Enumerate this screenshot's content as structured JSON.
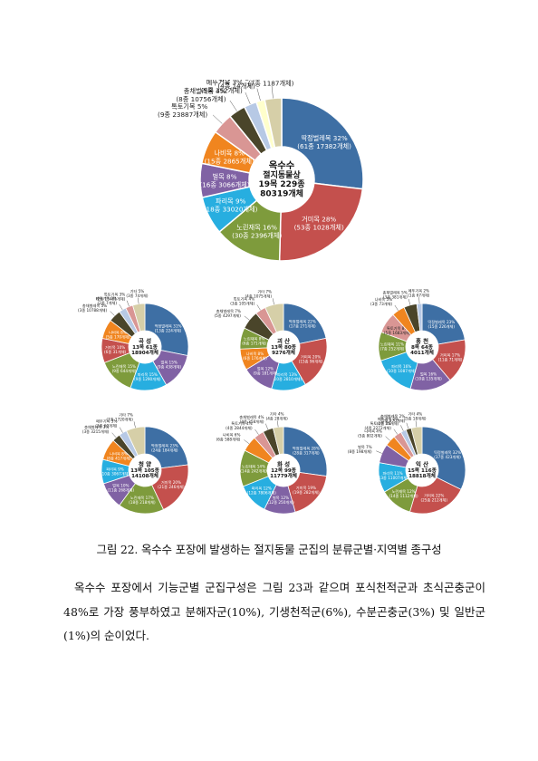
{
  "chart_data": [
    {
      "type": "pie",
      "center_label": [
        "옥수수",
        "절지동물상",
        "19목 229종",
        "80319개체"
      ],
      "slices": [
        {
          "name": "딱정벌레목 32%",
          "detail": "(61종 17382개체)",
          "value": 32,
          "color": "#3e6fa4"
        },
        {
          "name": "거미목 28%",
          "detail": "(53종 1028개체)",
          "value": 28,
          "color": "#c4504d"
        },
        {
          "name": "노린재목 16%",
          "detail": "(30종 2396개체)",
          "value": 16,
          "color": "#7e9b3c"
        },
        {
          "name": "파리목 9%",
          "detail": "(18종 33020개체)",
          "value": 9,
          "color": "#27aee0"
        },
        {
          "name": "벌목 8%",
          "detail": "(16종 3066개체)",
          "value": 8,
          "color": "#8062a4"
        },
        {
          "name": "나비목 8%",
          "detail": "(15종 2865개체)",
          "value": 8,
          "color": "#f0851f"
        },
        {
          "name": "톡토기목 5%",
          "detail": "(9종 23887개체)",
          "value": 5,
          "color": "#d99694"
        },
        {
          "name": "총채벌레목 4%",
          "detail": "(8종 10756개체)",
          "value": 4,
          "color": "#4a452a"
        },
        {
          "name": "메뚜기목 3%",
          "detail": "(5종 352개체)",
          "value": 3,
          "color": "#b7c9e5"
        },
        {
          "name": "잠자리목 2%",
          "detail": "(4종 14개체)",
          "value": 2,
          "color": "#ffffcc"
        },
        {
          "name": "기타 4%",
          "detail": "(7종 1187개체)",
          "value": 4,
          "color": "#d6cfa8"
        }
      ]
    },
    {
      "type": "pie",
      "center_label": [
        "곡 성",
        "13목 61종",
        "18904개체"
      ],
      "slices": [
        {
          "name": "딱정벌레목 31%",
          "detail": "(13종 224개체)",
          "value": 31,
          "color": "#3e6fa4"
        },
        {
          "name": "벌목 15%",
          "detail": "(9종 438개체)",
          "value": 15,
          "color": "#8062a4"
        },
        {
          "name": "파리목 15%",
          "detail": "(9종 1290개체)",
          "value": 15,
          "color": "#27aee0"
        },
        {
          "name": "노린재목 15%",
          "detail": "(9종 644개체)",
          "value": 15,
          "color": "#7e9b3c"
        },
        {
          "name": "거미목 10%",
          "detail": "(6종 31개체)",
          "value": 10,
          "color": "#c4504d"
        },
        {
          "name": "나비목 8%",
          "detail": "(5종 170개체)",
          "value": 8,
          "color": "#f0851f"
        },
        {
          "name": "총채벌레목 5%",
          "detail": "(3종 10788개체)",
          "value": 5,
          "color": "#4a452a"
        },
        {
          "name": "메뚜기목 3%",
          "detail": "(2종 7개체)",
          "value": 3,
          "color": "#b7c9e5"
        },
        {
          "name": "톡토기목 3%",
          "detail": "(2종 15481개체)",
          "value": 3,
          "color": "#d99694"
        },
        {
          "name": "기타 5%",
          "detail": "(3종 74개체)",
          "value": 5,
          "color": "#d6cfa8"
        }
      ]
    },
    {
      "type": "pie",
      "center_label": [
        "괴 산",
        "13목 80종",
        "9276개체"
      ],
      "slices": [
        {
          "name": "딱정벌레목 22%",
          "detail": "(17종 271개체)",
          "value": 22,
          "color": "#3e6fa4"
        },
        {
          "name": "거미목 20%",
          "detail": "(15종 96개체)",
          "value": 20,
          "color": "#c4504d"
        },
        {
          "name": "파리목 13%",
          "detail": "(10종 2810개체)",
          "value": 13,
          "color": "#27aee0"
        },
        {
          "name": "벌목 12%",
          "detail": "(9종 181개체)",
          "value": 12,
          "color": "#8062a4"
        },
        {
          "name": "나비목 8%",
          "detail": "(6종 176개체)",
          "value": 8,
          "color": "#f0851f"
        },
        {
          "name": "노린재목 8%",
          "detail": "(6종 171개체)",
          "value": 8,
          "color": "#7e9b3c"
        },
        {
          "name": "총채벌레목 7%",
          "detail": "(5종 4297개체)",
          "value": 7,
          "color": "#4a452a"
        },
        {
          "name": "톡토기목 4%",
          "detail": "(3종 105개체)",
          "value": 4,
          "color": "#d99694"
        },
        {
          "name": "기타 7%",
          "detail": "(4종 1075개체)",
          "value": 7,
          "color": "#d6cfa8"
        }
      ]
    },
    {
      "type": "pie",
      "center_label": [
        "홍 천",
        "8목 64종",
        "4011개체"
      ],
      "slices": [
        {
          "name": "딱정벌레목 23%",
          "detail": "(15종 226개체)",
          "value": 23,
          "color": "#3e6fa4"
        },
        {
          "name": "거미목 17%",
          "detail": "(11종 71개체)",
          "value": 17,
          "color": "#c4504d"
        },
        {
          "name": "벌목 16%",
          "detail": "(10종 135개체)",
          "value": 16,
          "color": "#8062a4"
        },
        {
          "name": "파리목 16%",
          "detail": "(10종 1087개체)",
          "value": 16,
          "color": "#27aee0"
        },
        {
          "name": "노린재목 11%",
          "detail": "(7종 252개체)",
          "value": 11,
          "color": "#7e9b3c"
        },
        {
          "name": "톡토기목 8%",
          "detail": "(5종 1683개체)",
          "value": 8,
          "color": "#d99694"
        },
        {
          "name": "나비목 5%",
          "detail": "(3종 73개체)",
          "value": 5,
          "color": "#f0851f"
        },
        {
          "name": "총채벌레목 5%",
          "detail": "(3종 381개체)",
          "value": 5,
          "color": "#4a452a"
        },
        {
          "name": "메뚜기목 2%",
          "detail": "(1종 67개체)",
          "value": 2,
          "color": "#b7c9e5"
        }
      ]
    },
    {
      "type": "pie",
      "center_label": [
        "청 양",
        "13목 105종",
        "14108개체"
      ],
      "slices": [
        {
          "name": "딱정벌레목 23%",
          "detail": "(24종 184개체)",
          "value": 23,
          "color": "#3e6fa4"
        },
        {
          "name": "거미목 20%",
          "detail": "(21종 246개체)",
          "value": 20,
          "color": "#c4504d"
        },
        {
          "name": "노린재목 17%",
          "detail": "(18종 218개체)",
          "value": 17,
          "color": "#7e9b3c"
        },
        {
          "name": "벌목 10%",
          "detail": "(11종 268개체)",
          "value": 10,
          "color": "#8062a4"
        },
        {
          "name": "파리목 9%",
          "detail": "(10종 3067개체)",
          "value": 9,
          "color": "#27aee0"
        },
        {
          "name": "나비목 8%",
          "detail": "(8종 417개체)",
          "value": 8,
          "color": "#f0851f"
        },
        {
          "name": "총채벌레목 3%",
          "detail": "(3종 3215개체)",
          "value": 3,
          "color": "#4a452a"
        },
        {
          "name": "메뚜기목 3%",
          "detail": "(3종 69개체)",
          "value": 3,
          "color": "#b7c9e5"
        },
        {
          "name": "기타 7%",
          "detail": "(7종 1720개체)",
          "value": 7,
          "color": "#d6cfa8"
        }
      ]
    },
    {
      "type": "pie",
      "center_label": [
        "화 성",
        "12목 99종",
        "11779개체"
      ],
      "slices": [
        {
          "name": "딱정벌레목 28%",
          "detail": "(28종 317개체)",
          "value": 28,
          "color": "#3e6fa4"
        },
        {
          "name": "거미목 19%",
          "detail": "(19종 282개체)",
          "value": 19,
          "color": "#c4504d"
        },
        {
          "name": "벌목 12%",
          "detail": "(12종 250개체)",
          "value": 12,
          "color": "#8062a4"
        },
        {
          "name": "파리목 12%",
          "detail": "(12종 7806개체)",
          "value": 12,
          "color": "#27aee0"
        },
        {
          "name": "노린재목 14%",
          "detail": "(14종 242개체)",
          "value": 14,
          "color": "#7e9b3c"
        },
        {
          "name": "나비목 6%",
          "detail": "(6종 588개체)",
          "value": 6,
          "color": "#f0851f"
        },
        {
          "name": "톡토기목 4%",
          "detail": "(4종 2844개체)",
          "value": 4,
          "color": "#d99694"
        },
        {
          "name": "총채벌레목 4%",
          "detail": "(4종 358개체)",
          "value": 4,
          "color": "#4a452a"
        },
        {
          "name": "기타 4%",
          "detail": "(4종 28개체)",
          "value": 4,
          "color": "#d6cfa8"
        }
      ]
    },
    {
      "type": "pie",
      "center_label": [
        "익 산",
        "15목 116종",
        "18818개체"
      ],
      "slices": [
        {
          "name": "딱정벌레목 32%",
          "detail": "(37종 423개체)",
          "value": 32,
          "color": "#3e6fa4"
        },
        {
          "name": "거미목 22%",
          "detail": "(25종 212개체)",
          "value": 22,
          "color": "#c4504d"
        },
        {
          "name": "노린재목 12%",
          "detail": "(14종 1112개체)",
          "value": 12,
          "color": "#7e9b3c"
        },
        {
          "name": "파리목 11%",
          "detail": "(13종 11007개체)",
          "value": 11,
          "color": "#27aee0"
        },
        {
          "name": "벌목 7%",
          "detail": "(8종 198개체)",
          "value": 7,
          "color": "#8062a4"
        },
        {
          "name": "나비목 4%",
          "detail": "(5종 802개체)",
          "value": 4,
          "color": "#f0851f"
        },
        {
          "name": "톡토기목 3%",
          "detail": "(4종 2272개체)",
          "value": 3,
          "color": "#d99694"
        },
        {
          "name": "메뚜기목 2%",
          "detail": "(2종 15개체)",
          "value": 2,
          "color": "#b7c9e5"
        },
        {
          "name": "총채벌레목 2%",
          "detail": "(2종 870개체)",
          "value": 2,
          "color": "#4a452a"
        },
        {
          "name": "기타 4%",
          "detail": "(5종 18개체)",
          "value": 4,
          "color": "#d6cfa8"
        }
      ]
    }
  ],
  "caption": "그림 22. 옥수수 포장에 발생하는 절지동물 군집의 분류군별·지역별 종구성",
  "body_text": "옥수수 포장에서 기능군별 군집구성은 그림 23과 같으며 포식천적군과 초식곤충군이 48%로 가장 풍부하였고 분해자군(10%), 기생천적군(6%), 수분곤충군(3%) 및 일반군(1%)의 순이었다."
}
